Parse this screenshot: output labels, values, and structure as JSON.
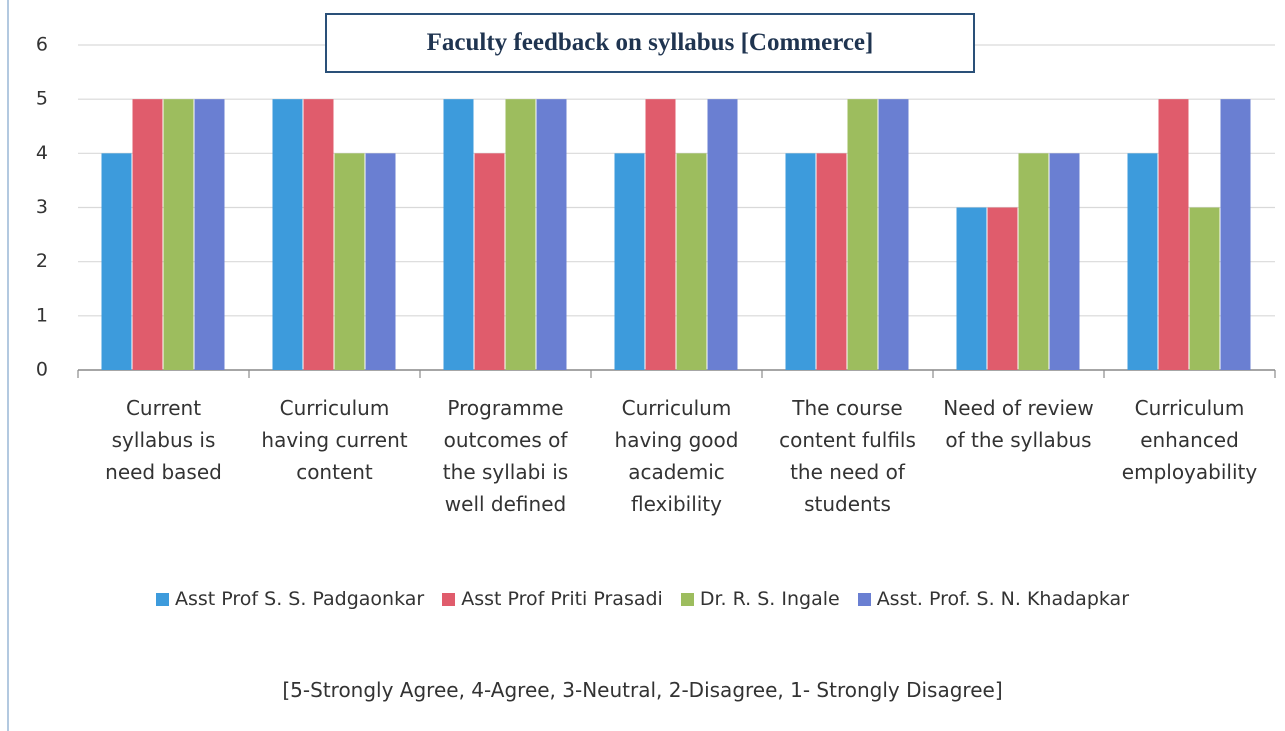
{
  "chart_data": {
    "type": "bar",
    "title": "Faculty feedback on syllabus [Commerce]",
    "categories": [
      "Current syllabus is need based",
      "Curriculum having current content",
      "Programme outcomes of the syllabi is well defined",
      "Curriculum having good academic flexibility",
      "The course content fulfils the need of students",
      "Need of review of the syllabus",
      "Curriculum enhanced employability"
    ],
    "series": [
      {
        "name": "Asst Prof S. S. Padgaonkar",
        "color": "#3d9bdc",
        "values": [
          4,
          5,
          5,
          4,
          4,
          3,
          4
        ]
      },
      {
        "name": "Asst Prof Priti Prasadi",
        "color": "#e05c6c",
        "values": [
          5,
          5,
          4,
          5,
          4,
          3,
          5
        ]
      },
      {
        "name": "Dr. R. S. Ingale",
        "color": "#9dbd5e",
        "values": [
          5,
          4,
          5,
          4,
          5,
          4,
          3
        ]
      },
      {
        "name": "Asst. Prof. S. N. Khadapkar",
        "color": "#6a7fd2",
        "values": [
          5,
          4,
          5,
          5,
          5,
          4,
          5
        ]
      }
    ],
    "ylim": [
      0,
      6
    ],
    "yticks": [
      0,
      1,
      2,
      3,
      4,
      5,
      6
    ],
    "grid": true,
    "legend": "bottom",
    "note": "[5-Strongly Agree,  4-Agree,  3-Neutral,  2-Disagree,  1- Strongly Disagree]"
  }
}
